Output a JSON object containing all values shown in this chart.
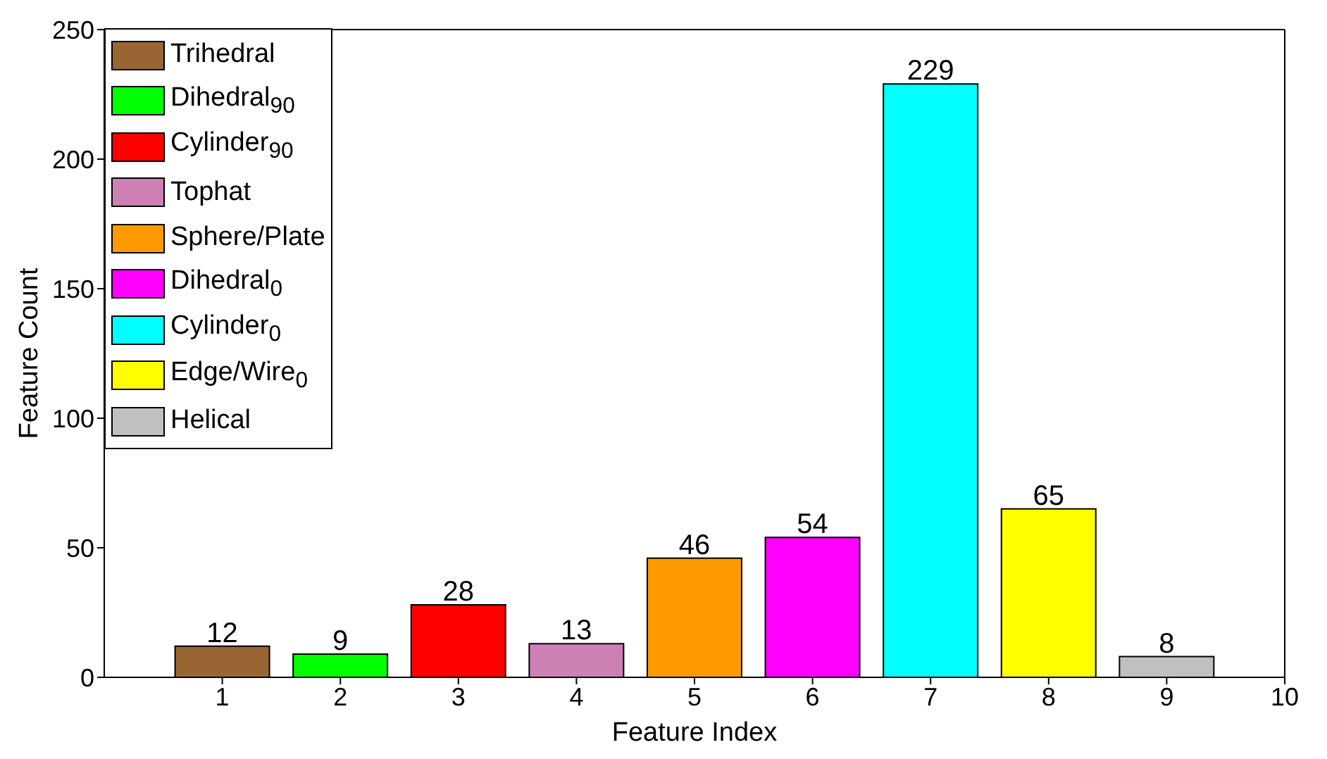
{
  "chart_data": {
    "type": "bar",
    "xlabel": "Feature Index",
    "ylabel": "Feature Count",
    "xlim": [
      0,
      10
    ],
    "xticks": [
      1,
      2,
      3,
      4,
      5,
      6,
      7,
      8,
      9,
      10
    ],
    "ylim": [
      0,
      250
    ],
    "yticks": [
      0,
      50,
      100,
      150,
      200,
      250
    ],
    "data_labels": true,
    "legend": "top left",
    "grid": false,
    "series": [
      {
        "name": "Trihedral",
        "color": "#996633",
        "x": [
          1
        ],
        "values": [
          12
        ]
      },
      {
        "name": "Dihedral$_{90}$",
        "color": "#00ff00",
        "x": [
          2
        ],
        "values": [
          9
        ]
      },
      {
        "name": "Cylinder$_{90}$",
        "color": "#ff0000",
        "x": [
          3
        ],
        "values": [
          28
        ]
      },
      {
        "name": "Tophat",
        "color": "#cc80b3",
        "x": [
          4
        ],
        "values": [
          13
        ]
      },
      {
        "name": "Sphere/Plate",
        "color": "#ff9900",
        "x": [
          5
        ],
        "values": [
          46
        ]
      },
      {
        "name": "Dihedral$_{0}$",
        "color": "#ff00ff",
        "x": [
          6
        ],
        "values": [
          54
        ]
      },
      {
        "name": "Cylinder$_{0}$",
        "color": "#00ffff",
        "x": [
          7
        ],
        "values": [
          229
        ]
      },
      {
        "name": "Edge/Wire$_{0}$",
        "color": "#ffff00",
        "x": [
          8
        ],
        "values": [
          65
        ]
      },
      {
        "name": "Helical",
        "color": "#c0c0c0",
        "x": [
          9
        ],
        "values": [
          8
        ]
      }
    ]
  }
}
